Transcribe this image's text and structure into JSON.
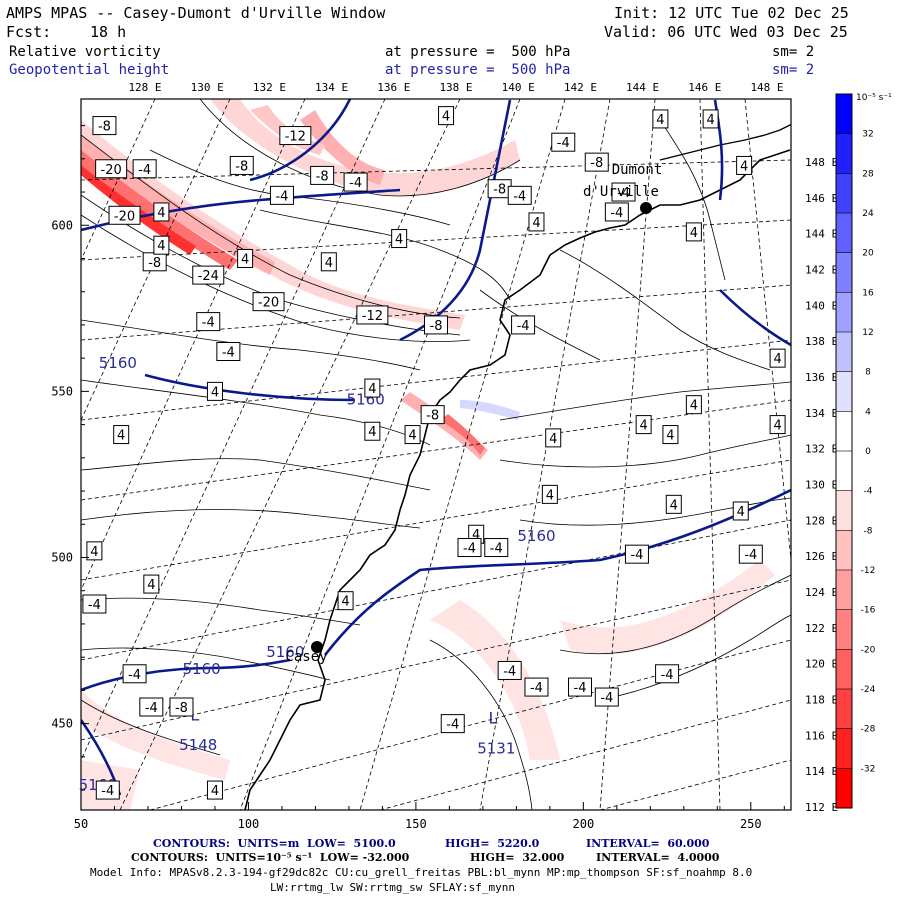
{
  "header": {
    "title": "AMPS MPAS -- Casey-Dumont d'Urville Window",
    "init": "Init: 12 UTC Tue 02 Dec 25",
    "fcst_label": "Fcst:",
    "fcst_value": "18 h",
    "valid": "Valid: 06 UTC Wed 03 Dec 25",
    "field1_name": "Relative vorticity",
    "field1_level": "at pressure =  500 hPa",
    "field1_sm": "sm= 2",
    "field2_name": "Geopotential height",
    "field2_level": "at pressure =  500 hPa",
    "field2_sm": "sm= 2"
  },
  "top_lon_labels": [
    "128 E",
    "130 E",
    "132 E",
    "134 E",
    "136 E",
    "138 E",
    "140 E",
    "142 E",
    "144 E",
    "146 E",
    "148 E"
  ],
  "right_lon_labels": [
    "148 E",
    "146 E",
    "144 E",
    "142 E",
    "140 E",
    "138 E",
    "136 E",
    "134 E",
    "132 E",
    "130 E",
    "128 E",
    "126 E",
    "124 E",
    "122 E",
    "120 E",
    "118 E",
    "116 E",
    "114 E",
    "112 E"
  ],
  "x_axis": {
    "ticks": [
      "50",
      "100",
      "150",
      "200",
      "250"
    ],
    "range": [
      50,
      262
    ]
  },
  "y_axis": {
    "ticks": [
      "600",
      "550",
      "500",
      "450"
    ],
    "range": [
      424,
      638
    ]
  },
  "colorbar": {
    "unit": "10⁻⁵ s⁻¹",
    "labels": [
      "32",
      "28",
      "24",
      "20",
      "16",
      "12",
      "8",
      "4",
      "0",
      "-4",
      "-8",
      "-12",
      "-16",
      "-20",
      "-24",
      "-28",
      "-32"
    ],
    "colors": [
      "#0000ff",
      "#2020ff",
      "#4040ff",
      "#6060ff",
      "#8080ff",
      "#a0a0ff",
      "#c0c0ff",
      "#e0e0ff",
      "#ffffff",
      "#ffffff",
      "#ffe0e0",
      "#ffc0c0",
      "#ffa0a0",
      "#ff8080",
      "#ff6060",
      "#ff4040",
      "#ff2020",
      "#ff0000"
    ]
  },
  "stations": [
    {
      "name": "Dumont",
      "name2": "d'Urville",
      "x": 219,
      "y": 604
    },
    {
      "name": "Casey",
      "x": 120,
      "y": 473
    }
  ],
  "height_labels": [
    {
      "text": "5160",
      "x": 61,
      "y": 557
    },
    {
      "text": "5160",
      "x": 135,
      "y": 546
    },
    {
      "text": "5160",
      "x": 186,
      "y": 505
    },
    {
      "text": "5160",
      "x": 111,
      "y": 470
    },
    {
      "text": "5160",
      "x": 86,
      "y": 465
    },
    {
      "text": "5160",
      "x": 55,
      "y": 430
    },
    {
      "text": "5148",
      "x": 85,
      "y": 442
    },
    {
      "text": "L",
      "x": 84,
      "y": 451
    },
    {
      "text": "5131",
      "x": 174,
      "y": 441
    },
    {
      "text": "L",
      "x": 173,
      "y": 450
    }
  ],
  "vort_labels": [
    {
      "text": "-8",
      "x": 57,
      "y": 630
    },
    {
      "text": "-20",
      "x": 59,
      "y": 617
    },
    {
      "text": "-4",
      "x": 69,
      "y": 617
    },
    {
      "text": "-8",
      "x": 98,
      "y": 618
    },
    {
      "text": "-12",
      "x": 114,
      "y": 627
    },
    {
      "text": "-8",
      "x": 122,
      "y": 615
    },
    {
      "text": "-4",
      "x": 110,
      "y": 609
    },
    {
      "text": "-4",
      "x": 132,
      "y": 613
    },
    {
      "text": "-20",
      "x": 63,
      "y": 603
    },
    {
      "text": "4",
      "x": 74,
      "y": 604
    },
    {
      "text": "-8",
      "x": 72,
      "y": 589
    },
    {
      "text": "-24",
      "x": 88,
      "y": 585
    },
    {
      "text": "-20",
      "x": 106,
      "y": 577
    },
    {
      "text": "-12",
      "x": 137,
      "y": 573
    },
    {
      "text": "-8",
      "x": 156,
      "y": 570
    },
    {
      "text": "-8",
      "x": 175,
      "y": 611
    },
    {
      "text": "-4",
      "x": 181,
      "y": 609
    },
    {
      "text": "4",
      "x": 145,
      "y": 596
    },
    {
      "text": "4",
      "x": 159,
      "y": 633
    },
    {
      "text": "4",
      "x": 186,
      "y": 601
    },
    {
      "text": "-4",
      "x": 194,
      "y": 625
    },
    {
      "text": "-8",
      "x": 204,
      "y": 619
    },
    {
      "text": "4",
      "x": 223,
      "y": 632
    },
    {
      "text": "4",
      "x": 238,
      "y": 632
    },
    {
      "text": "-4",
      "x": 210,
      "y": 604
    },
    {
      "text": "-4",
      "x": 212,
      "y": 610
    },
    {
      "text": "4",
      "x": 248,
      "y": 618
    },
    {
      "text": "4",
      "x": 233,
      "y": 598
    },
    {
      "text": "4",
      "x": 74,
      "y": 594
    },
    {
      "text": "4",
      "x": 99,
      "y": 590
    },
    {
      "text": "-4",
      "x": 88,
      "y": 571
    },
    {
      "text": "-4",
      "x": 94,
      "y": 562
    },
    {
      "text": "4",
      "x": 124,
      "y": 589
    },
    {
      "text": "-4",
      "x": 182,
      "y": 570
    },
    {
      "text": "4",
      "x": 90,
      "y": 550
    },
    {
      "text": "4",
      "x": 137,
      "y": 551
    },
    {
      "text": "-8",
      "x": 155,
      "y": 543
    },
    {
      "text": "4",
      "x": 149,
      "y": 537
    },
    {
      "text": "4",
      "x": 137,
      "y": 538
    },
    {
      "text": "4",
      "x": 191,
      "y": 536
    },
    {
      "text": "4",
      "x": 233,
      "y": 546
    },
    {
      "text": "4",
      "x": 258,
      "y": 540
    },
    {
      "text": "4",
      "x": 218,
      "y": 540
    },
    {
      "text": "4",
      "x": 226,
      "y": 537
    },
    {
      "text": "4",
      "x": 258,
      "y": 560
    },
    {
      "text": "4",
      "x": 62,
      "y": 537
    },
    {
      "text": "4",
      "x": 190,
      "y": 519
    },
    {
      "text": "4",
      "x": 227,
      "y": 516
    },
    {
      "text": "4",
      "x": 247,
      "y": 514
    },
    {
      "text": "4",
      "x": 54,
      "y": 502
    },
    {
      "text": "4",
      "x": 168,
      "y": 507
    },
    {
      "text": "4",
      "x": 71,
      "y": 492
    },
    {
      "text": "4",
      "x": 129,
      "y": 487
    },
    {
      "text": "-4",
      "x": 54,
      "y": 486
    },
    {
      "text": "-4",
      "x": 166,
      "y": 503
    },
    {
      "text": "-4",
      "x": 174,
      "y": 503
    },
    {
      "text": "-4",
      "x": 216,
      "y": 501
    },
    {
      "text": "-4",
      "x": 250,
      "y": 501
    },
    {
      "text": "-4",
      "x": 71,
      "y": 455
    },
    {
      "text": "-4",
      "x": 66,
      "y": 465
    },
    {
      "text": "-4",
      "x": 161,
      "y": 450
    },
    {
      "text": "-4",
      "x": 186,
      "y": 461
    },
    {
      "text": "-4",
      "x": 199,
      "y": 461
    },
    {
      "text": "-4",
      "x": 207,
      "y": 458
    },
    {
      "text": "-4",
      "x": 225,
      "y": 465
    },
    {
      "text": "-4",
      "x": 178,
      "y": 466
    },
    {
      "text": "4",
      "x": 90,
      "y": 430
    },
    {
      "text": "-4",
      "x": 58,
      "y": 430
    },
    {
      "text": "-8",
      "x": 80,
      "y": 455
    }
  ],
  "footer": {
    "line1_label": "CONTOURS:  UNITS=m  LOW=  5100.0",
    "line1_high": "HIGH=  5220.0",
    "line1_interval": "INTERVAL=  60.000",
    "line2_label": "CONTOURS:  UNITS=10⁻⁵ s⁻¹  LOW= -32.000",
    "line2_high": "HIGH=  32.000",
    "line2_interval": "INTERVAL=  4.0000",
    "model_info": "Model Info: MPASv8.2.3-194-gf29dc82c CU:cu_grell_freitas PBL:bl_mynn MP:mp_thompson SF:sf_noahmp 8.0",
    "model_info2": "LW:rrtmg_lw SW:rrtmg_sw SFLAY:sf_mynn"
  }
}
